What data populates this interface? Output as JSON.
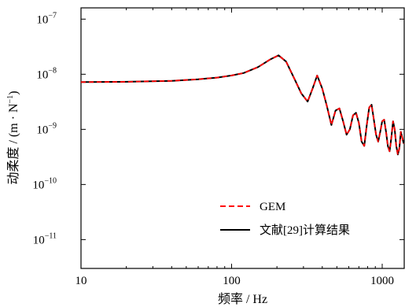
{
  "chart_data": {
    "type": "line",
    "xlabel": "频率 / Hz",
    "ylabel_main": "动柔度 / (m · N",
    "ylabel_sup": "−1",
    "ylabel_close": ")",
    "xscale": "log",
    "yscale": "log",
    "xlim": [
      10,
      1400
    ],
    "ylim": [
      3e-12,
      1.6e-07
    ],
    "x_ticks": [
      {
        "value": 10,
        "label": "10"
      },
      {
        "value": 100,
        "label": "100"
      },
      {
        "value": 1000,
        "label": "1000"
      }
    ],
    "y_ticks": [
      {
        "value": 1e-07,
        "base": "10",
        "exp": "−7"
      },
      {
        "value": 1e-08,
        "base": "10",
        "exp": "−8"
      },
      {
        "value": 1e-09,
        "base": "10",
        "exp": "−9"
      },
      {
        "value": 1e-10,
        "base": "10",
        "exp": "−10"
      },
      {
        "value": 1e-11,
        "base": "10",
        "exp": "−11"
      }
    ],
    "grid": false,
    "legend_position": "bottom-right",
    "series": [
      {
        "name": "GEM",
        "color": "#ff0000",
        "dash": "dashed",
        "x": [
          10,
          20,
          40,
          60,
          80,
          100,
          120,
          150,
          180,
          205,
          230,
          260,
          290,
          320,
          345,
          370,
          400,
          430,
          460,
          490,
          520,
          550,
          580,
          610,
          640,
          670,
          700,
          730,
          760,
          790,
          820,
          850,
          880,
          910,
          940,
          970,
          1000,
          1030,
          1060,
          1090,
          1120,
          1150,
          1180,
          1210,
          1240,
          1270,
          1300,
          1330,
          1360,
          1390
        ],
        "y": [
          7.2e-09,
          7.3e-09,
          7.6e-09,
          8.1e-09,
          8.7e-09,
          9.5e-09,
          1.05e-08,
          1.35e-08,
          1.85e-08,
          2.2e-08,
          1.7e-08,
          8.5e-09,
          4.5e-09,
          3.2e-09,
          5.5e-09,
          9.5e-09,
          5.5e-09,
          2.6e-09,
          1.2e-09,
          2.2e-09,
          2.4e-09,
          1.4e-09,
          8e-10,
          1e-09,
          1.8e-09,
          2e-09,
          1.3e-09,
          6e-10,
          5e-10,
          1.2e-09,
          2.5e-09,
          2.8e-09,
          1.5e-09,
          8e-10,
          6e-10,
          9e-10,
          1.4e-09,
          1.5e-09,
          9e-10,
          5e-10,
          4e-10,
          7e-10,
          1.4e-09,
          1e-09,
          5e-10,
          3.5e-10,
          4.5e-10,
          9e-10,
          7e-10,
          5.5e-10
        ]
      },
      {
        "name": "文献[29]计算结果",
        "color": "#000000",
        "dash": "solid",
        "x": [
          10,
          20,
          40,
          60,
          80,
          100,
          120,
          150,
          180,
          205,
          230,
          260,
          290,
          320,
          345,
          370,
          400,
          430,
          460,
          490,
          520,
          550,
          580,
          610,
          640,
          670,
          700,
          730,
          760,
          790,
          820,
          850,
          880,
          910,
          940,
          970,
          1000,
          1030,
          1060,
          1090,
          1120,
          1150,
          1180,
          1210,
          1240,
          1270,
          1300,
          1330,
          1360,
          1390
        ],
        "y": [
          7.2e-09,
          7.3e-09,
          7.6e-09,
          8.1e-09,
          8.7e-09,
          9.5e-09,
          1.05e-08,
          1.35e-08,
          1.85e-08,
          2.2e-08,
          1.7e-08,
          8.5e-09,
          4.5e-09,
          3.2e-09,
          5.5e-09,
          9.5e-09,
          5.5e-09,
          2.6e-09,
          1.2e-09,
          2.2e-09,
          2.4e-09,
          1.4e-09,
          8e-10,
          1e-09,
          1.8e-09,
          2e-09,
          1.3e-09,
          6e-10,
          5e-10,
          1.2e-09,
          2.5e-09,
          2.8e-09,
          1.5e-09,
          8e-10,
          6e-10,
          9e-10,
          1.4e-09,
          1.5e-09,
          9e-10,
          5e-10,
          4e-10,
          7e-10,
          1.4e-09,
          1e-09,
          5e-10,
          3.5e-10,
          4.5e-10,
          9e-10,
          7e-10,
          5.5e-10
        ]
      }
    ]
  }
}
